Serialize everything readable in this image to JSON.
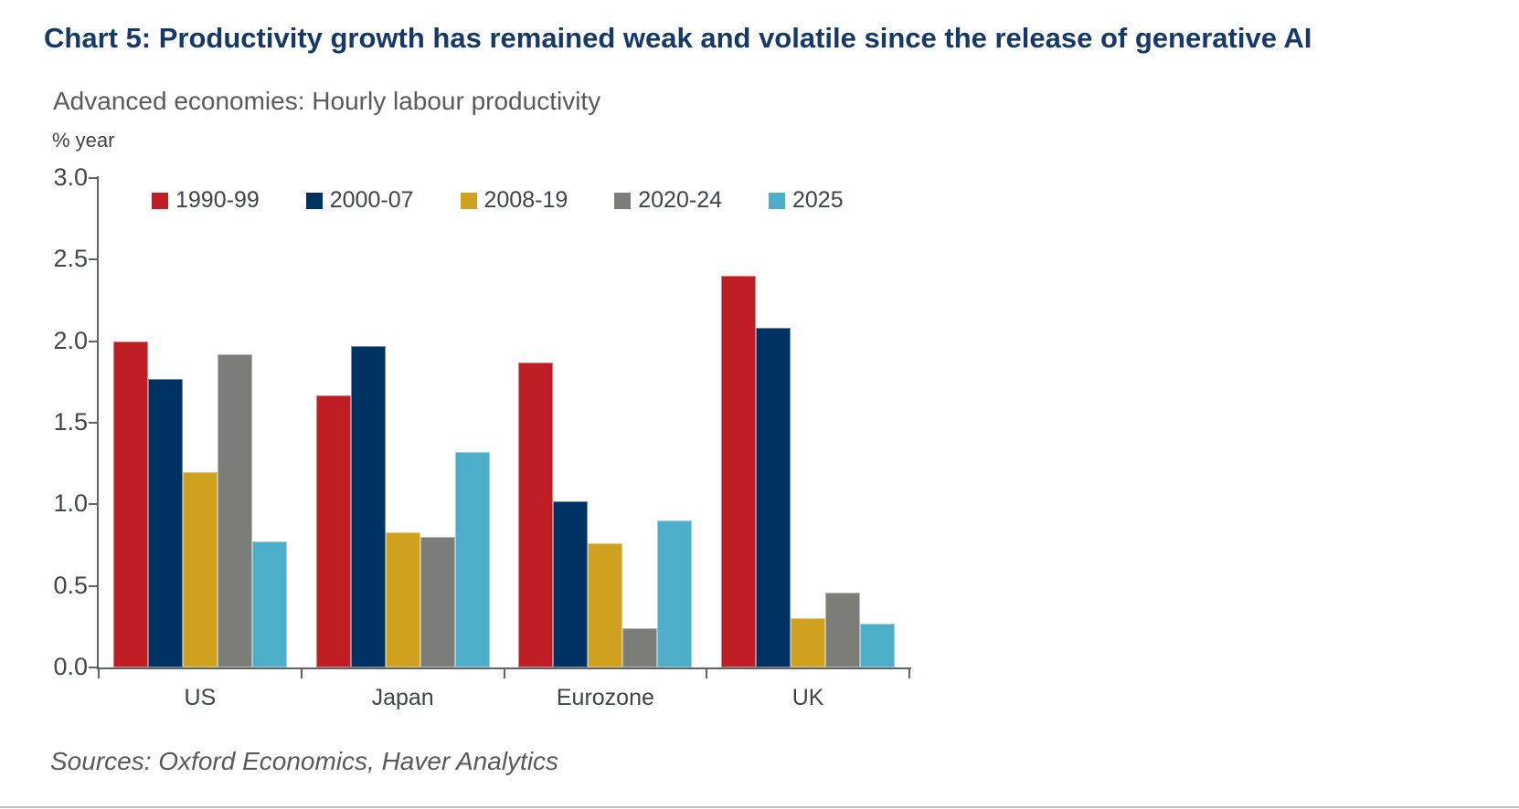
{
  "page": {
    "title": "Chart 5: Productivity growth has remained weak and volatile since the release of generative AI",
    "subtitle": "Advanced economies: Hourly labour productivity",
    "unit_label": "% year",
    "sources": "Sources: Oxford Economics, Haver Analytics"
  },
  "colors": {
    "title_text": "#16396A",
    "subtitle_text": "#5A5A5A",
    "axis_text": "#42464C",
    "axis_line": "#5F646A"
  },
  "chart_data": {
    "type": "bar",
    "title": "Advanced economies: Hourly labour productivity",
    "ylabel": "% year",
    "xlabel": "",
    "categories": [
      "US",
      "Japan",
      "Eurozone",
      "UK"
    ],
    "series": [
      {
        "name": "1990-99",
        "color": "#BE1E23",
        "values": [
          2.0,
          1.67,
          1.87,
          2.4
        ]
      },
      {
        "name": "2000-07",
        "color": "#003263",
        "values": [
          1.77,
          1.97,
          1.02,
          2.08
        ]
      },
      {
        "name": "2008-19",
        "color": "#D0A11E",
        "values": [
          1.2,
          0.83,
          0.76,
          0.3
        ]
      },
      {
        "name": "2020-24",
        "color": "#7C7C78",
        "values": [
          1.92,
          0.8,
          0.24,
          0.46
        ]
      },
      {
        "name": "2025",
        "color": "#4DAEC9",
        "values": [
          0.77,
          1.32,
          0.9,
          0.27
        ]
      }
    ],
    "ylim": [
      0.0,
      3.0
    ],
    "ytick_step": 0.5,
    "ytick_labels": [
      "3.0",
      "2.5",
      "2.0",
      "1.5",
      "1.0",
      "0.5",
      "0.0"
    ],
    "grid": false,
    "legend_position": "top-inside"
  }
}
